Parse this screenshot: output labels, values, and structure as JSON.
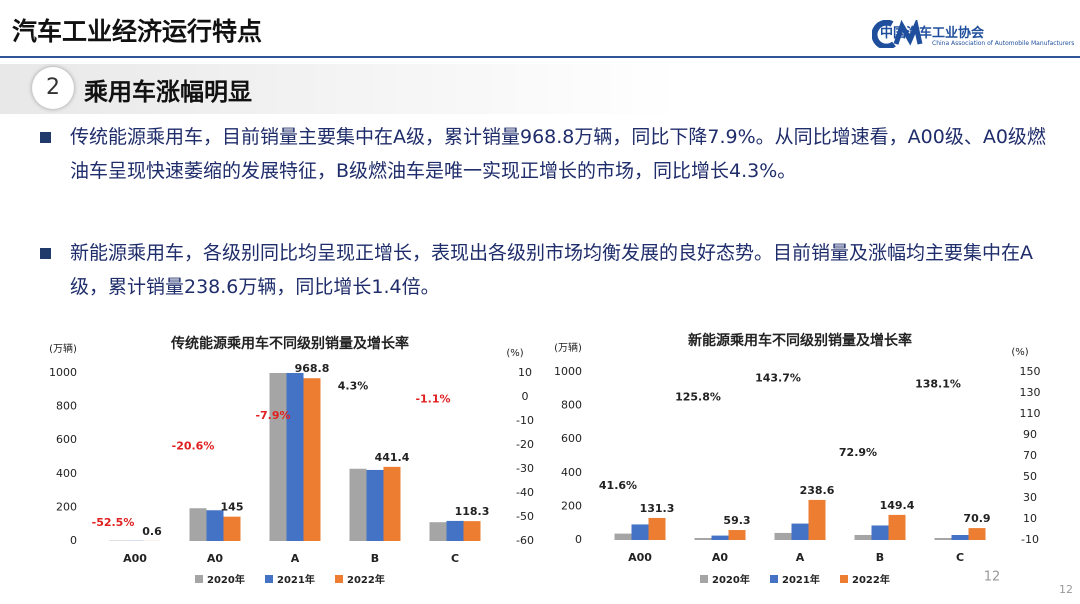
{
  "header": {
    "title": "汽车工业经济运行特点",
    "logo_name": "中国汽车工业协会",
    "logo_english": "China Association of Automobile Manufacturers"
  },
  "section": {
    "number": "2",
    "title": "乘用车涨幅明显"
  },
  "bullets": [
    "传统能源乘用车，目前销量主要集中在A级，累计销量968.8万辆，同比下降7.9%。从同比增速看，A00级、A0级燃油车呈现快速萎缩的发展特征，B级燃油车是唯一实现正增长的市场，同比增长4.3%。",
    "新能源乘用车，各级别同比均呈现正增长，表现出各级别市场均衡发展的良好态势。目前销量及涨幅均主要集中在A级，累计销量238.6万辆，同比增长1.4倍。"
  ],
  "chart_data": [
    {
      "type": "bar",
      "title": "传统能源乘用车不同级别销量及增长率",
      "y_label": "(万辆)",
      "y2_label": "(%)",
      "categories": [
        "A00",
        "A0",
        "A",
        "B",
        "C"
      ],
      "series": [
        {
          "name": "2020年",
          "color": "#a5a5a5",
          "values": [
            2,
            195,
            1020,
            430,
            112
          ]
        },
        {
          "name": "2021年",
          "color": "#4472c4",
          "values": [
            1.3,
            183,
            1052,
            423,
            119.6
          ]
        },
        {
          "name": "2022年",
          "color": "#ed7d31",
          "values": [
            0.6,
            145,
            968.8,
            441.4,
            118.3
          ],
          "labels": true
        }
      ],
      "growth": {
        "axis": "y2",
        "values": [
          -52.5,
          -20.6,
          -7.9,
          4.3,
          -1.1
        ],
        "value_labels": [
          "-52.5%",
          "-20.6%",
          "-7.9%",
          "4.3%",
          "-1.1%"
        ],
        "label_colors": {
          "negative": "#e02020",
          "positive": "#222222"
        }
      },
      "ylim": [
        0,
        1000
      ],
      "yticks": [
        0,
        200,
        400,
        600,
        800,
        1000
      ],
      "y2lim": [
        -60,
        10
      ],
      "y2ticks": [
        10,
        0,
        -10,
        -20,
        -30,
        -40,
        -50,
        -60
      ],
      "grid": false
    },
    {
      "type": "bar",
      "title": "新能源乘用车不同级别销量及增长率",
      "y_label": "(万辆)",
      "y2_label": "(%)",
      "categories": [
        "A00",
        "A0",
        "A",
        "B",
        "C"
      ],
      "series": [
        {
          "name": "2020年",
          "color": "#a5a5a5",
          "values": [
            38,
            12,
            42,
            30,
            12
          ]
        },
        {
          "name": "2021年",
          "color": "#4472c4",
          "values": [
            92.7,
            26.3,
            97.7,
            86.4,
            29.8
          ]
        },
        {
          "name": "2022年",
          "color": "#ed7d31",
          "values": [
            131.3,
            59.3,
            238.6,
            149.4,
            70.9
          ],
          "labels": true
        }
      ],
      "growth": {
        "axis": "y2",
        "values": [
          41.6,
          125.8,
          143.7,
          72.9,
          138.1
        ],
        "value_labels": [
          "41.6%",
          "125.8%",
          "143.7%",
          "72.9%",
          "138.1%"
        ],
        "label_colors": {
          "negative": "#e02020",
          "positive": "#222222"
        }
      },
      "ylim": [
        0,
        1000
      ],
      "yticks": [
        0,
        200,
        400,
        600,
        800,
        1000
      ],
      "y2lim": [
        -10,
        150
      ],
      "y2ticks": [
        150,
        130,
        110,
        90,
        70,
        50,
        30,
        10,
        -10
      ],
      "grid": false
    }
  ],
  "page_number": "12"
}
